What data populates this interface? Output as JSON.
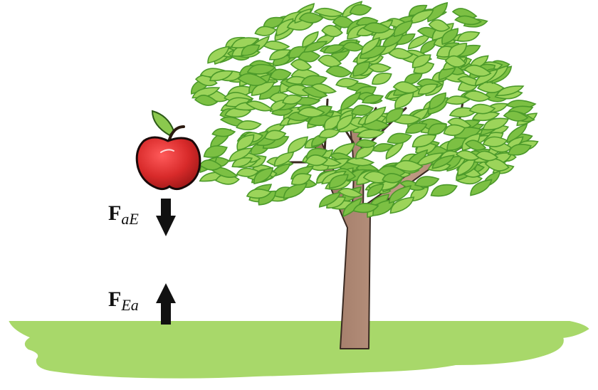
{
  "forces": [
    {
      "symbol": "F",
      "subscript": "aE",
      "direction": "down"
    },
    {
      "symbol": "F",
      "subscript": "Ea",
      "direction": "up"
    }
  ],
  "colors": {
    "ground": "#a8d86a",
    "trunk": "#b8907a",
    "leaf_dark": "#4c9a2a",
    "leaf_light": "#9cd45a",
    "apple": "#d82a2a",
    "arrow": "#111111"
  }
}
